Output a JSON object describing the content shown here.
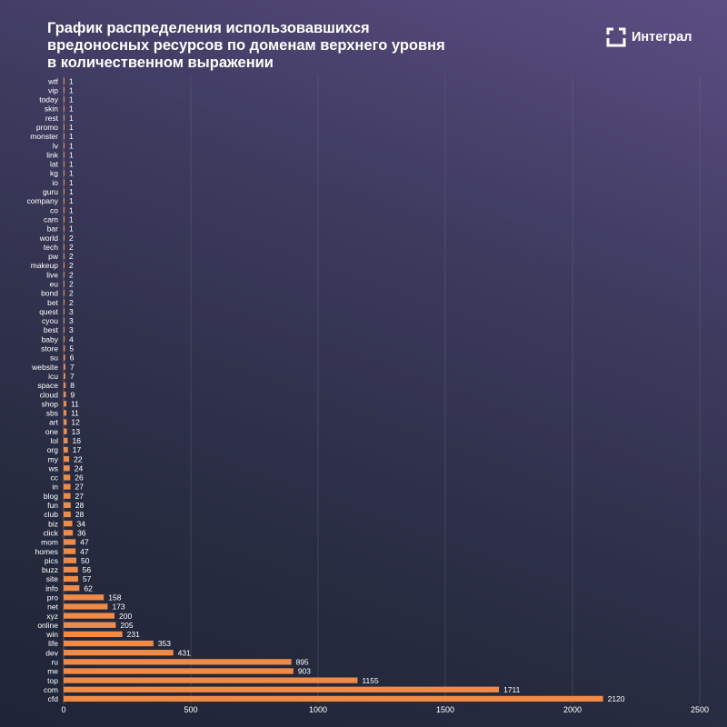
{
  "title_lines": [
    "График распределения использовавшихся",
    "вредоносных ресурсов по доменам верхнего уровня",
    "в количественном выражении"
  ],
  "brand": {
    "name": "Интеграл",
    "icon": "integral-logo-icon",
    "color": "#ffffff"
  },
  "colors": {
    "bar": "#f08a45",
    "text": "#ffffff",
    "grid": "#6b6f86"
  },
  "chart_data": {
    "type": "bar",
    "orientation": "horizontal",
    "title": "График распределения использовавшихся вредоносных ресурсов по доменам верхнего уровня в количественном выражении",
    "xlabel": "",
    "ylabel": "",
    "xlim": [
      0,
      2500
    ],
    "xticks": [
      0,
      500,
      1000,
      1500,
      2000,
      2500
    ],
    "grid": "vertical",
    "legend": "none",
    "categories": [
      "wtf",
      "vip",
      "today",
      "skin",
      "rest",
      "promo",
      "monster",
      "lv",
      "link",
      "lat",
      "kg",
      "io",
      "guru",
      "company",
      "co",
      "cam",
      "bar",
      "world",
      "tech",
      "pw",
      "makeup",
      "live",
      "eu",
      "bond",
      "bet",
      "quest",
      "cyou",
      "best",
      "baby",
      "store",
      "su",
      "website",
      "icu",
      "space",
      "cloud",
      "shop",
      "sbs",
      "art",
      "one",
      "lol",
      "org",
      "my",
      "ws",
      "cc",
      "in",
      "blog",
      "fun",
      "club",
      "biz",
      "click",
      "mom",
      "homes",
      "pics",
      "buzz",
      "site",
      "info",
      "pro",
      "net",
      "xyz",
      "online",
      "win",
      "life",
      "dev",
      "ru",
      "me",
      "top",
      "com",
      "cfd"
    ],
    "values": [
      1,
      1,
      1,
      1,
      1,
      1,
      1,
      1,
      1,
      1,
      1,
      1,
      1,
      1,
      1,
      1,
      1,
      2,
      2,
      2,
      2,
      2,
      2,
      2,
      2,
      3,
      3,
      3,
      4,
      5,
      6,
      7,
      7,
      8,
      9,
      11,
      11,
      12,
      13,
      16,
      17,
      22,
      24,
      26,
      27,
      27,
      28,
      28,
      34,
      36,
      47,
      47,
      50,
      56,
      57,
      62,
      158,
      173,
      200,
      205,
      231,
      353,
      431,
      895,
      903,
      1155,
      1711,
      2120
    ]
  }
}
